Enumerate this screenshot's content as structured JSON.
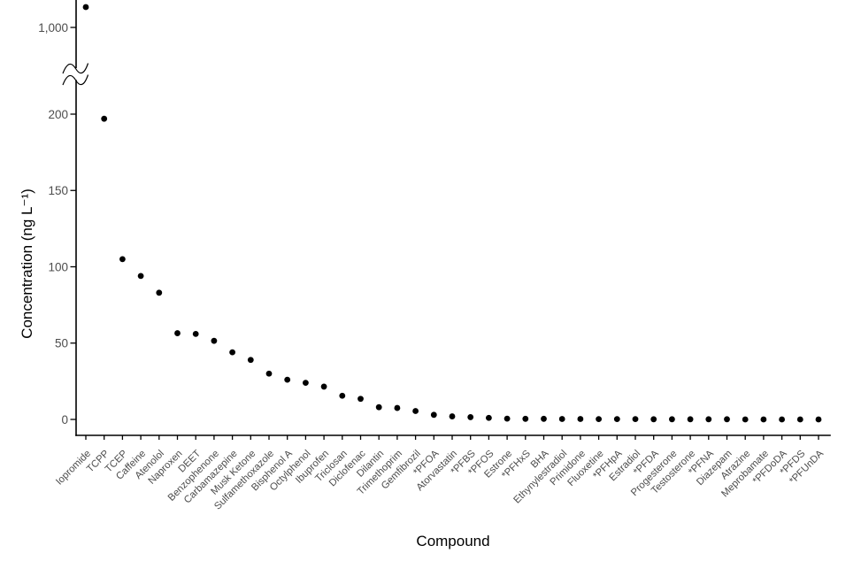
{
  "figure": {
    "xlabel": "Compound",
    "ylabel": "Concentration (ng L⁻¹)"
  },
  "chart_data": {
    "type": "scatter",
    "title": "",
    "xlabel": "Compound",
    "ylabel": "Concentration (ng L⁻¹)",
    "grid": false,
    "legend": false,
    "point_color": "#000000",
    "axis_color": "#000000",
    "tick_label_color": "#4d4d4d",
    "y_axis": {
      "has_break": true,
      "lower_ticks": [
        0,
        50,
        100,
        150,
        200
      ],
      "lower_tick_labels": [
        "0",
        "50",
        "100",
        "150",
        "200"
      ],
      "upper_tick_value": 1000,
      "upper_tick_label": "1,000",
      "lower_range_max": 240
    },
    "categories": [
      "Iopromide",
      "TCPP",
      "TCEP",
      "Caffeine",
      "Atenolol",
      "Naproxen",
      "DEET",
      "Benzophenone",
      "Carbamazepine",
      "Musk Ketone",
      "Sulfamethoxazole",
      "Bisphenol A",
      "Octylphenol",
      "Ibuprofen",
      "Triclosan",
      "Diclofenac",
      "Dilantin",
      "Trimethoprim",
      "Gemfibrozil",
      "*PFOA",
      "Atorvastatin",
      "*PFBS",
      "*PFOS",
      "Estrone",
      "*PFHxS",
      "BHA",
      "Ethynylestradiol",
      "Primidone",
      "Fluoxetine",
      "*PFHpA",
      "Estradiol",
      "*PFDA",
      "Progesterone",
      "Testosterone",
      "*PFNA",
      "Diazepam",
      "Atrazine",
      "Meprobamate",
      "*PFDoDA",
      "*PFDS",
      "*PFUnDA"
    ],
    "values": [
      1130,
      197,
      105,
      94,
      83,
      56.5,
      56,
      51.5,
      44,
      39,
      30,
      26,
      24,
      21.5,
      15.5,
      13.5,
      8,
      7.5,
      5.5,
      3,
      2,
      1.5,
      1,
      0.5,
      0.4,
      0.4,
      0.3,
      0.3,
      0.2,
      0.2,
      0.2,
      0.1,
      0.1,
      0.1,
      0.1,
      0.1,
      0,
      0,
      0,
      0,
      0
    ]
  }
}
